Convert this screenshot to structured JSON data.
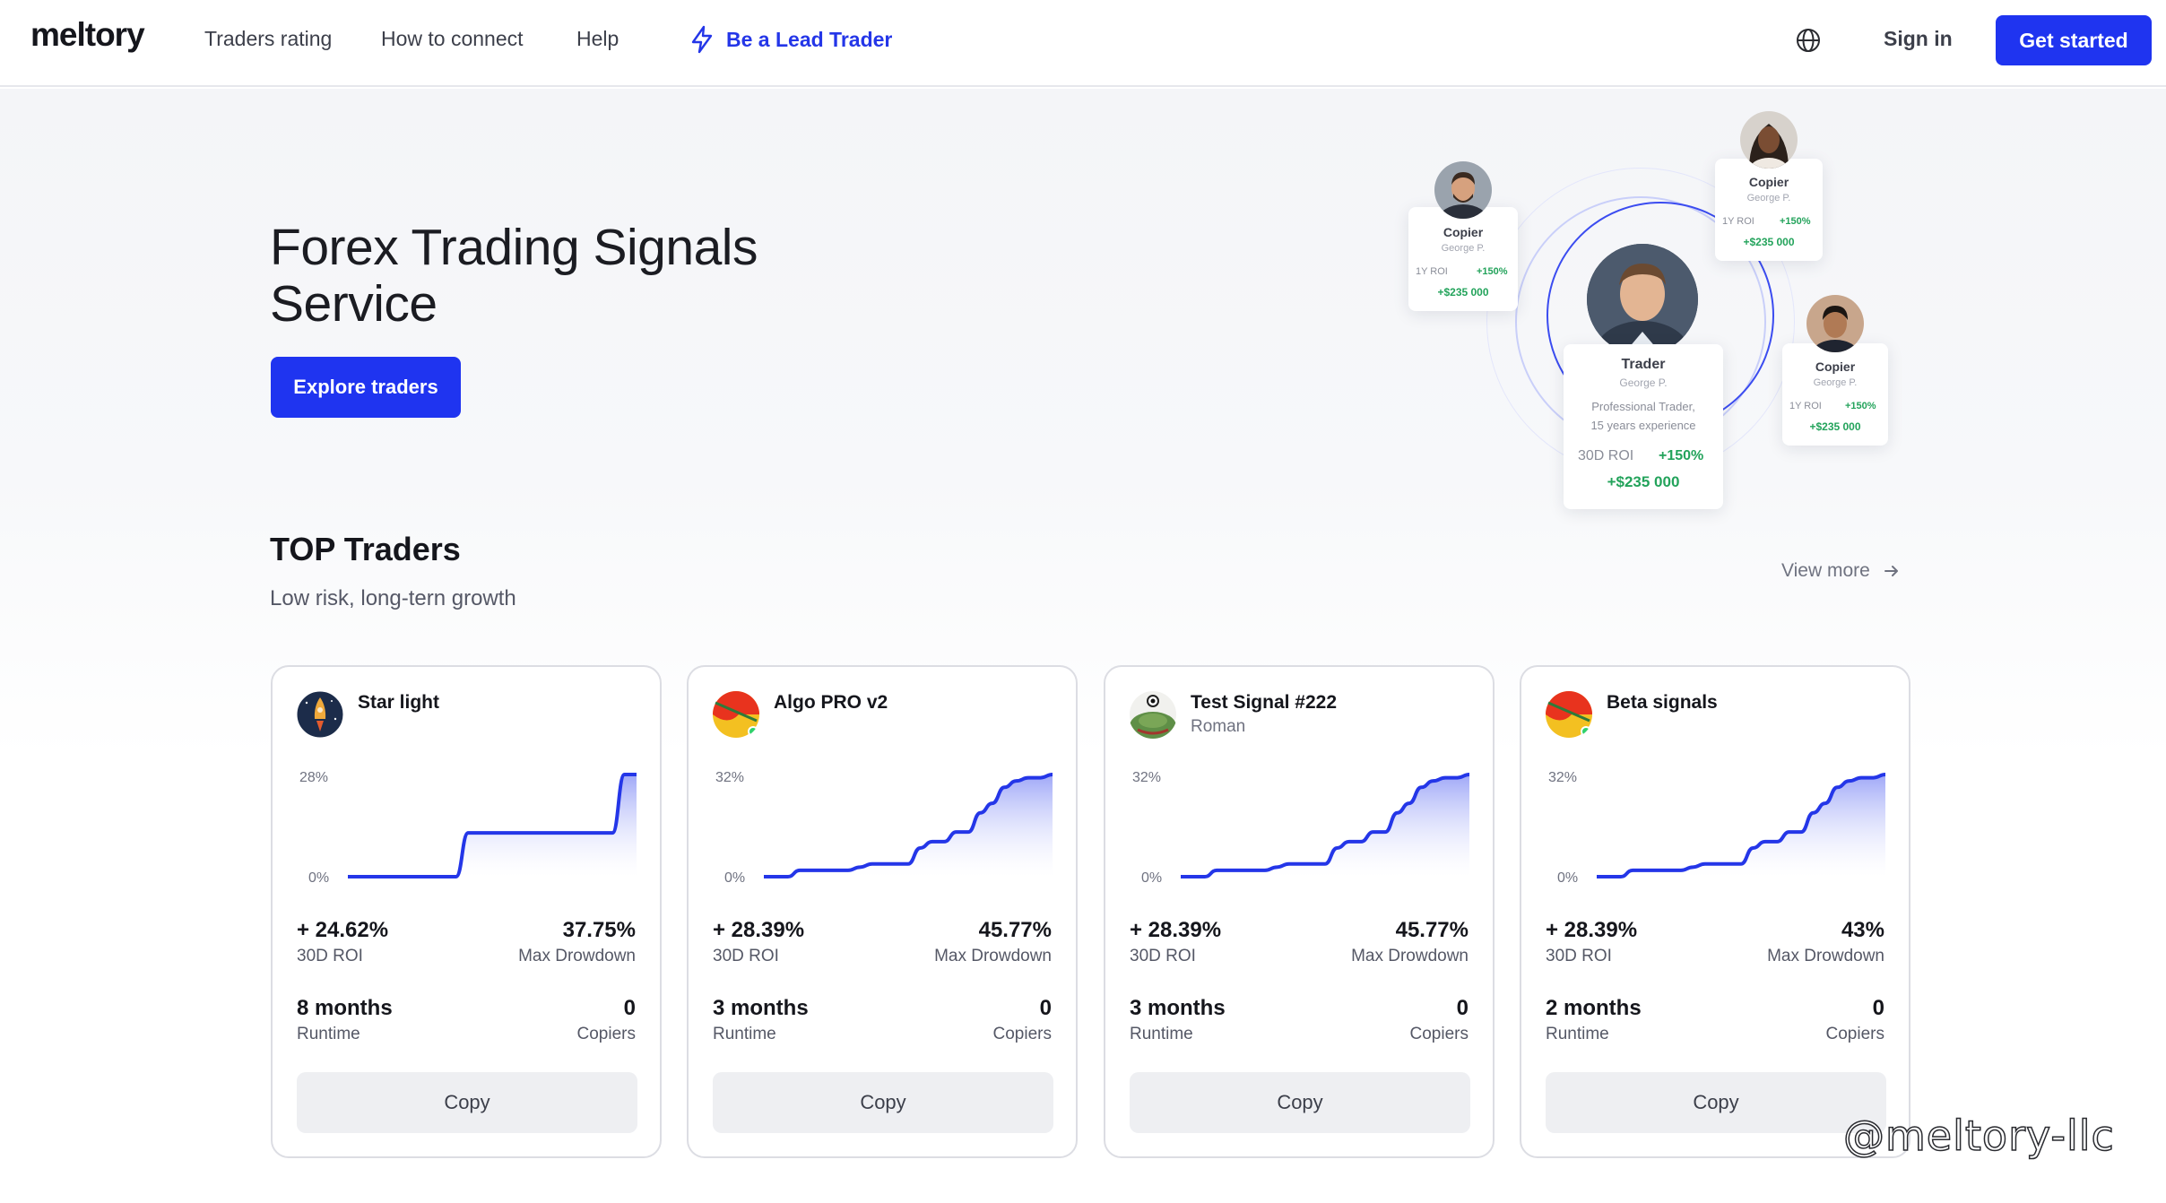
{
  "header": {
    "logo": "meltory",
    "nav": [
      "Traders rating",
      "How to connect",
      "Help"
    ],
    "lead_trader": "Be a Lead Trader",
    "signin": "Sign in",
    "get_started": "Get started",
    "accent": "#1f34f0"
  },
  "hero": {
    "title_line1": "Forex Trading Signals",
    "title_line2": "Service",
    "explore": "Explore traders",
    "illustration": {
      "trader": {
        "role": "Trader",
        "name": "George P.",
        "desc_line1": "Professional Trader,",
        "desc_line2": "15 years experience",
        "roi_label": "30D ROI",
        "roi_value": "+150%",
        "profit": "+$235 000"
      },
      "copiers": [
        {
          "role": "Copier",
          "name": "George P.",
          "roi_label": "1Y ROI",
          "roi_value": "+150%",
          "profit": "+$235 000"
        },
        {
          "role": "Copier",
          "name": "George P.",
          "roi_label": "1Y ROI",
          "roi_value": "+150%",
          "profit": "+$235 000"
        },
        {
          "role": "Copier",
          "name": "George P.",
          "roi_label": "1Y ROI",
          "roi_value": "+150%",
          "profit": "+$235 000"
        }
      ]
    }
  },
  "top": {
    "title": "TOP Traders",
    "subtitle": "Low risk, long-tern growth",
    "view_more": "View more"
  },
  "cards": [
    {
      "name": "Star light",
      "subname": "",
      "icon": "rocket-avatar-icon",
      "ymax_label": "28%",
      "ymin_label": "0%",
      "roi": "+ 24.62%",
      "roi_label": "30D ROI",
      "drawdown": "37.75%",
      "drawdown_label": "Max Drowdown",
      "runtime": "8 months",
      "runtime_label": "Runtime",
      "copiers": "0",
      "copiers_label": "Copiers",
      "copy": "Copy"
    },
    {
      "name": "Algo PRO v2",
      "subname": "",
      "icon": "flag-avatar-icon",
      "ymax_label": "32%",
      "ymin_label": "0%",
      "roi": "+ 28.39%",
      "roi_label": "30D ROI",
      "drawdown": "45.77%",
      "drawdown_label": "Max Drowdown",
      "runtime": "3 months",
      "runtime_label": "Runtime",
      "copiers": "0",
      "copiers_label": "Copiers",
      "copy": "Copy"
    },
    {
      "name": "Test Signal #222",
      "subname": "Roman",
      "icon": "frog-avatar-icon",
      "ymax_label": "32%",
      "ymin_label": "0%",
      "roi": "+ 28.39%",
      "roi_label": "30D ROI",
      "drawdown": "45.77%",
      "drawdown_label": "Max Drowdown",
      "runtime": "3 months",
      "runtime_label": "Runtime",
      "copiers": "0",
      "copiers_label": "Copiers",
      "copy": "Copy"
    },
    {
      "name": "Beta signals",
      "subname": "",
      "icon": "flag-avatar-icon",
      "ymax_label": "32%",
      "ymin_label": "0%",
      "roi": "+ 28.39%",
      "roi_label": "30D ROI",
      "drawdown": "43%",
      "drawdown_label": "Max Drowdown",
      "runtime": "2 months",
      "runtime_label": "Runtime",
      "copiers": "0",
      "copiers_label": "Copiers",
      "copy": "Copy"
    }
  ],
  "chart_data": [
    {
      "type": "area",
      "x": [
        0,
        1,
        2,
        3,
        4,
        5,
        6,
        7,
        8,
        9,
        10,
        11,
        12,
        13,
        14,
        15,
        16,
        17,
        18,
        19,
        20,
        21,
        22,
        23,
        24
      ],
      "y": [
        0,
        0,
        0,
        0,
        0,
        0,
        0,
        0,
        0,
        0,
        12,
        12,
        12,
        12,
        12,
        12,
        12,
        12,
        12,
        12,
        12,
        12,
        12,
        28,
        28
      ],
      "ylim": [
        0,
        28
      ],
      "ytick_labels": [
        "28%",
        "0%"
      ]
    },
    {
      "type": "area",
      "x": [
        0,
        1,
        2,
        3,
        4,
        5,
        6,
        7,
        8,
        9,
        10,
        11,
        12,
        13,
        14,
        15,
        16,
        17,
        18,
        19,
        20,
        21,
        22,
        23,
        24
      ],
      "y": [
        0,
        0,
        0,
        2,
        2,
        2,
        2,
        2,
        3,
        4,
        4,
        4,
        4,
        9,
        11,
        11,
        14,
        14,
        20,
        23,
        28,
        30,
        31,
        31,
        32
      ],
      "ylim": [
        0,
        32
      ],
      "ytick_labels": [
        "32%",
        "0%"
      ]
    },
    {
      "type": "area",
      "x": [
        0,
        1,
        2,
        3,
        4,
        5,
        6,
        7,
        8,
        9,
        10,
        11,
        12,
        13,
        14,
        15,
        16,
        17,
        18,
        19,
        20,
        21,
        22,
        23,
        24
      ],
      "y": [
        0,
        0,
        0,
        2,
        2,
        2,
        2,
        2,
        3,
        4,
        4,
        4,
        4,
        9,
        11,
        11,
        14,
        14,
        20,
        23,
        28,
        30,
        31,
        31,
        32
      ],
      "ylim": [
        0,
        32
      ],
      "ytick_labels": [
        "32%",
        "0%"
      ]
    },
    {
      "type": "area",
      "x": [
        0,
        1,
        2,
        3,
        4,
        5,
        6,
        7,
        8,
        9,
        10,
        11,
        12,
        13,
        14,
        15,
        16,
        17,
        18,
        19,
        20,
        21,
        22,
        23,
        24
      ],
      "y": [
        0,
        0,
        0,
        2,
        2,
        2,
        2,
        2,
        3,
        4,
        4,
        4,
        4,
        9,
        11,
        11,
        14,
        14,
        20,
        23,
        28,
        30,
        31,
        31,
        32
      ],
      "ylim": [
        0,
        32
      ],
      "ytick_labels": [
        "32%",
        "0%"
      ]
    }
  ],
  "watermark": "@meltory-llc",
  "colors": {
    "line": "#2436e8",
    "area_top": "#9aa3f7",
    "positive": "#23a35b"
  }
}
